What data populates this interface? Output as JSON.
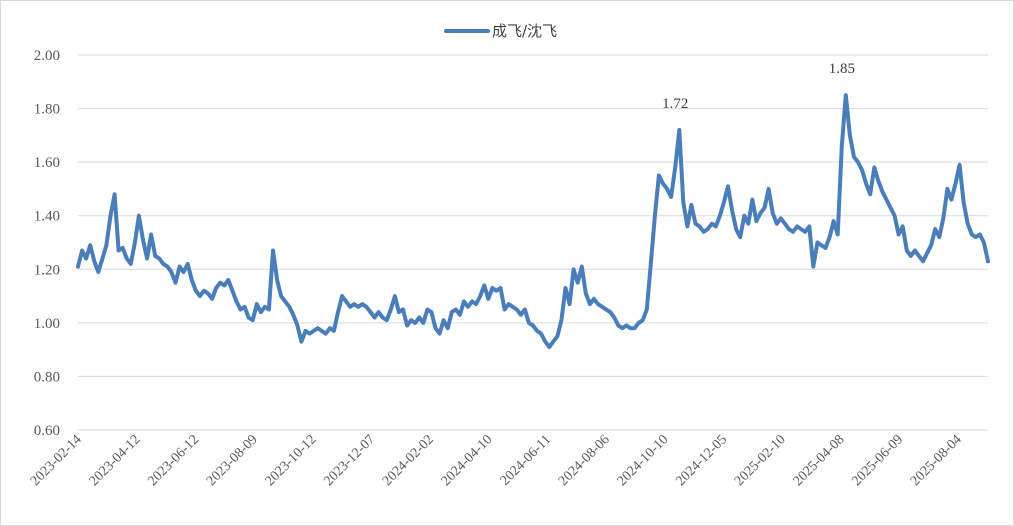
{
  "chart_data": {
    "type": "line",
    "title": "",
    "xlabel": "",
    "ylabel": "",
    "ylim": [
      0.6,
      2.0
    ],
    "yticks": [
      "0.60",
      "0.80",
      "1.00",
      "1.20",
      "1.40",
      "1.60",
      "1.80",
      "2.00"
    ],
    "xticks": [
      "2023-02-14",
      "2023-04-12",
      "2023-06-12",
      "2023-08-09",
      "2023-10-12",
      "2023-12-07",
      "2024-02-02",
      "2024-04-10",
      "2024-06-11",
      "2024-08-06",
      "2024-10-10",
      "2024-12-05",
      "2025-02-10",
      "2025-04-08",
      "2025-06-09",
      "2025-08-04"
    ],
    "grid": "horizontal",
    "legend_position": "top-center",
    "series": [
      {
        "name": "成飞/沈飞",
        "color": "#4a7ebb",
        "values": [
          [
            0,
            1.21
          ],
          [
            1,
            1.27
          ],
          [
            2,
            1.24
          ],
          [
            3,
            1.29
          ],
          [
            4,
            1.23
          ],
          [
            5,
            1.19
          ],
          [
            6,
            1.24
          ],
          [
            7,
            1.29
          ],
          [
            8,
            1.4
          ],
          [
            9,
            1.48
          ],
          [
            10,
            1.27
          ],
          [
            11,
            1.28
          ],
          [
            12,
            1.24
          ],
          [
            13,
            1.22
          ],
          [
            14,
            1.3
          ],
          [
            15,
            1.4
          ],
          [
            16,
            1.31
          ],
          [
            17,
            1.24
          ],
          [
            18,
            1.33
          ],
          [
            19,
            1.25
          ],
          [
            20,
            1.24
          ],
          [
            21,
            1.22
          ],
          [
            22,
            1.21
          ],
          [
            23,
            1.19
          ],
          [
            24,
            1.15
          ],
          [
            25,
            1.21
          ],
          [
            26,
            1.19
          ],
          [
            27,
            1.22
          ],
          [
            28,
            1.16
          ],
          [
            29,
            1.12
          ],
          [
            30,
            1.1
          ],
          [
            31,
            1.12
          ],
          [
            32,
            1.11
          ],
          [
            33,
            1.09
          ],
          [
            34,
            1.13
          ],
          [
            35,
            1.15
          ],
          [
            36,
            1.14
          ],
          [
            37,
            1.16
          ],
          [
            38,
            1.12
          ],
          [
            39,
            1.08
          ],
          [
            40,
            1.05
          ],
          [
            41,
            1.06
          ],
          [
            42,
            1.02
          ],
          [
            43,
            1.01
          ],
          [
            44,
            1.07
          ],
          [
            45,
            1.04
          ],
          [
            46,
            1.06
          ],
          [
            47,
            1.05
          ],
          [
            48,
            1.27
          ],
          [
            49,
            1.16
          ],
          [
            50,
            1.1
          ],
          [
            51,
            1.08
          ],
          [
            52,
            1.06
          ],
          [
            53,
            1.03
          ],
          [
            54,
            0.99
          ],
          [
            55,
            0.93
          ],
          [
            56,
            0.97
          ],
          [
            57,
            0.96
          ],
          [
            58,
            0.97
          ],
          [
            59,
            0.98
          ],
          [
            60,
            0.97
          ],
          [
            61,
            0.96
          ],
          [
            62,
            0.98
          ],
          [
            63,
            0.97
          ],
          [
            64,
            1.04
          ],
          [
            65,
            1.1
          ],
          [
            66,
            1.08
          ],
          [
            67,
            1.06
          ],
          [
            68,
            1.07
          ],
          [
            69,
            1.06
          ],
          [
            70,
            1.07
          ],
          [
            71,
            1.06
          ],
          [
            72,
            1.04
          ],
          [
            73,
            1.02
          ],
          [
            74,
            1.04
          ],
          [
            75,
            1.02
          ],
          [
            76,
            1.01
          ],
          [
            77,
            1.05
          ],
          [
            78,
            1.1
          ],
          [
            79,
            1.04
          ],
          [
            80,
            1.05
          ],
          [
            81,
            0.99
          ],
          [
            82,
            1.01
          ],
          [
            83,
            1.0
          ],
          [
            84,
            1.02
          ],
          [
            85,
            1.0
          ],
          [
            86,
            1.05
          ],
          [
            87,
            1.04
          ],
          [
            88,
            0.98
          ],
          [
            89,
            0.96
          ],
          [
            90,
            1.01
          ],
          [
            91,
            0.98
          ],
          [
            92,
            1.04
          ],
          [
            93,
            1.05
          ],
          [
            94,
            1.03
          ],
          [
            95,
            1.08
          ],
          [
            96,
            1.06
          ],
          [
            97,
            1.08
          ],
          [
            98,
            1.07
          ],
          [
            99,
            1.1
          ],
          [
            100,
            1.14
          ],
          [
            101,
            1.09
          ],
          [
            102,
            1.13
          ],
          [
            103,
            1.12
          ],
          [
            104,
            1.13
          ],
          [
            105,
            1.05
          ],
          [
            106,
            1.07
          ],
          [
            107,
            1.06
          ],
          [
            108,
            1.05
          ],
          [
            109,
            1.03
          ],
          [
            110,
            1.05
          ],
          [
            111,
            1.0
          ],
          [
            112,
            0.99
          ],
          [
            113,
            0.97
          ],
          [
            114,
            0.96
          ],
          [
            115,
            0.93
          ],
          [
            116,
            0.91
          ],
          [
            117,
            0.93
          ],
          [
            118,
            0.95
          ],
          [
            119,
            1.01
          ],
          [
            120,
            1.13
          ],
          [
            121,
            1.07
          ],
          [
            122,
            1.2
          ],
          [
            123,
            1.15
          ],
          [
            124,
            1.21
          ],
          [
            125,
            1.11
          ],
          [
            126,
            1.07
          ],
          [
            127,
            1.09
          ],
          [
            128,
            1.07
          ],
          [
            129,
            1.06
          ],
          [
            130,
            1.05
          ],
          [
            131,
            1.04
          ],
          [
            132,
            1.02
          ],
          [
            133,
            0.99
          ],
          [
            134,
            0.98
          ],
          [
            135,
            0.99
          ],
          [
            136,
            0.98
          ],
          [
            137,
            0.98
          ],
          [
            138,
            1.0
          ],
          [
            139,
            1.01
          ],
          [
            140,
            1.05
          ],
          [
            141,
            1.22
          ],
          [
            142,
            1.4
          ],
          [
            143,
            1.55
          ],
          [
            144,
            1.52
          ],
          [
            145,
            1.5
          ],
          [
            146,
            1.47
          ],
          [
            147,
            1.58
          ],
          [
            148,
            1.72
          ],
          [
            149,
            1.45
          ],
          [
            150,
            1.36
          ],
          [
            151,
            1.44
          ],
          [
            152,
            1.37
          ],
          [
            153,
            1.36
          ],
          [
            154,
            1.34
          ],
          [
            155,
            1.35
          ],
          [
            156,
            1.37
          ],
          [
            157,
            1.36
          ],
          [
            158,
            1.4
          ],
          [
            159,
            1.45
          ],
          [
            160,
            1.51
          ],
          [
            161,
            1.42
          ],
          [
            162,
            1.35
          ],
          [
            163,
            1.32
          ],
          [
            164,
            1.4
          ],
          [
            165,
            1.37
          ],
          [
            166,
            1.46
          ],
          [
            167,
            1.38
          ],
          [
            168,
            1.41
          ],
          [
            169,
            1.43
          ],
          [
            170,
            1.5
          ],
          [
            171,
            1.41
          ],
          [
            172,
            1.37
          ],
          [
            173,
            1.39
          ],
          [
            174,
            1.37
          ],
          [
            175,
            1.35
          ],
          [
            176,
            1.34
          ],
          [
            177,
            1.36
          ],
          [
            178,
            1.35
          ],
          [
            179,
            1.34
          ],
          [
            180,
            1.36
          ],
          [
            181,
            1.21
          ],
          [
            182,
            1.3
          ],
          [
            183,
            1.29
          ],
          [
            184,
            1.28
          ],
          [
            185,
            1.32
          ],
          [
            186,
            1.38
          ],
          [
            187,
            1.33
          ],
          [
            188,
            1.66
          ],
          [
            189,
            1.85
          ],
          [
            190,
            1.7
          ],
          [
            191,
            1.62
          ],
          [
            192,
            1.6
          ],
          [
            193,
            1.57
          ],
          [
            194,
            1.52
          ],
          [
            195,
            1.48
          ],
          [
            196,
            1.58
          ],
          [
            197,
            1.53
          ],
          [
            198,
            1.49
          ],
          [
            199,
            1.46
          ],
          [
            200,
            1.43
          ],
          [
            201,
            1.4
          ],
          [
            202,
            1.33
          ],
          [
            203,
            1.36
          ],
          [
            204,
            1.27
          ],
          [
            205,
            1.25
          ],
          [
            206,
            1.27
          ],
          [
            207,
            1.25
          ],
          [
            208,
            1.23
          ],
          [
            209,
            1.26
          ],
          [
            210,
            1.29
          ],
          [
            211,
            1.35
          ],
          [
            212,
            1.32
          ],
          [
            213,
            1.39
          ],
          [
            214,
            1.5
          ],
          [
            215,
            1.46
          ],
          [
            216,
            1.52
          ],
          [
            217,
            1.59
          ],
          [
            218,
            1.45
          ],
          [
            219,
            1.37
          ],
          [
            220,
            1.33
          ],
          [
            221,
            1.32
          ],
          [
            222,
            1.33
          ],
          [
            223,
            1.3
          ],
          [
            224,
            1.23
          ]
        ]
      }
    ],
    "annotations": [
      {
        "label": "1.72",
        "x": 148,
        "y": 1.72
      },
      {
        "label": "1.85",
        "x": 189,
        "y": 1.85
      }
    ]
  }
}
